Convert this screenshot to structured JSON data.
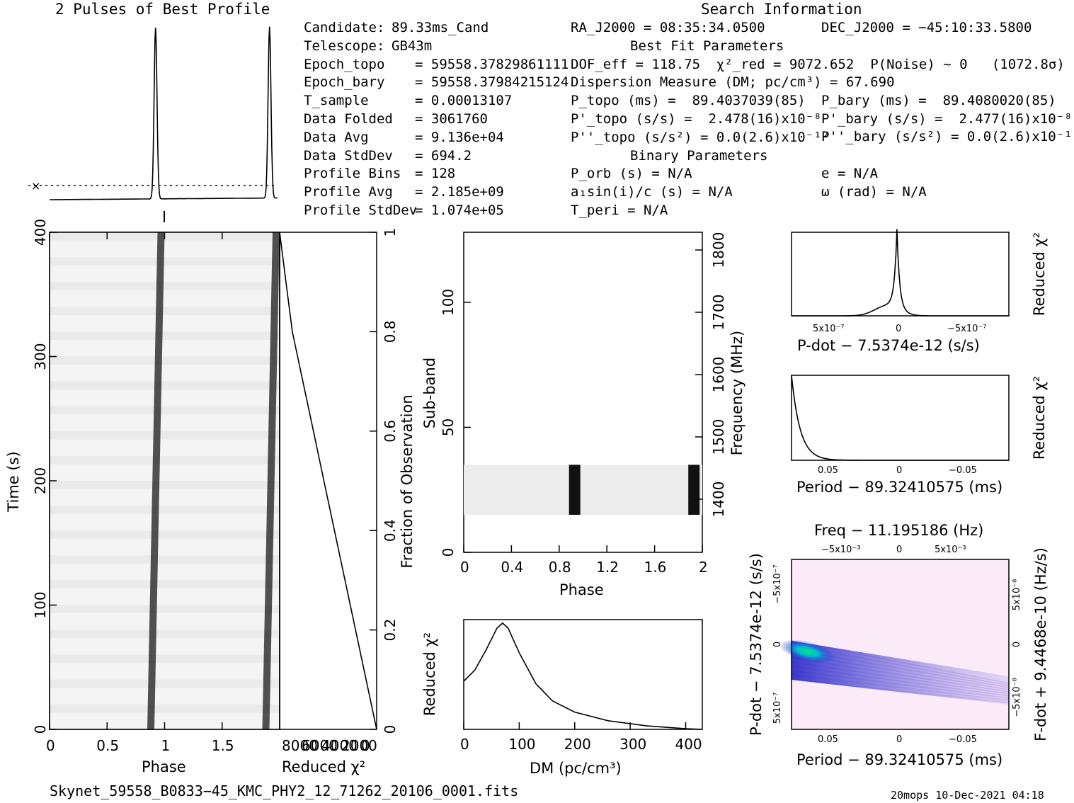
{
  "title_profile": "2 Pulses of Best Profile",
  "title_search": "Search Information",
  "info_left": [
    [
      "Candidate:",
      "89.33ms_Cand"
    ],
    [
      "Telescope:",
      "GB43m"
    ],
    [
      "Epoch_topo",
      "= 59558.37829861111"
    ],
    [
      "Epoch_bary",
      "= 59558.37984215124"
    ],
    [
      "T_sample",
      "= 0.00013107"
    ],
    [
      "Data Folded",
      "= 3061760"
    ],
    [
      "Data Avg",
      "= 9.136e+04"
    ],
    [
      "Data StdDev",
      "= 694.2"
    ],
    [
      "Profile Bins",
      "= 128"
    ],
    [
      "Profile Avg",
      "= 2.185e+09"
    ],
    [
      "Profile StdDev",
      "= 1.074e+05"
    ]
  ],
  "info_mid": [
    "RA_J2000 = 08:35:34.0500",
    "Best Fit Parameters",
    "DOF_eff = 118.75  χ²_red = 9072.652  P(Noise) ~ 0   (1072.8σ)",
    "Dispersion Measure (DM; pc/cm³) = 67.690",
    "P_topo (ms) =  89.4037039(85)",
    "P'_topo (s/s) =  2.478(16)x10⁻⁸",
    "P''_topo (s/s²) = 0.0(2.6)x10⁻¹²",
    "Binary Parameters",
    "P_orb (s) = N/A",
    "a₁sin(i)/c (s) = N/A",
    "T_peri = N/A"
  ],
  "info_right": [
    "DEC_J2000 = −45:10:33.5800",
    "P_bary (ms) =  89.4080020(85)",
    "P'_bary (s/s) =  2.477(16)x10⁻⁸",
    "P''_bary (s/s²) = 0.0(2.6)x10⁻¹²",
    "e = N/A",
    "ω (rad) = N/A"
  ],
  "footer_file": "Skynet_59558_B0833−45_KMC_PHY2_12_71262_20106_0001.fits",
  "footer_stamp": "20mops 10-Dec-2021 04:18",
  "colors": {
    "ink": "#000000",
    "cmap_low": "#ffffff",
    "cmap_mid": "#2424c8",
    "cmap_high": "#00e673"
  },
  "chart_data": [
    {
      "type": "line",
      "name": "profile",
      "title": "2 Pulses of Best Profile",
      "x": [
        0.0,
        0.2,
        0.5,
        0.8,
        0.86,
        0.9,
        0.93,
        0.96,
        1.0,
        1.3,
        1.7,
        1.86,
        1.9,
        1.93,
        1.96,
        2.0
      ],
      "y": [
        0.0,
        0.003,
        0.006,
        0.01,
        0.05,
        0.6,
        1.0,
        0.6,
        0.02,
        0.012,
        0.014,
        0.05,
        0.6,
        1.0,
        0.6,
        0.02
      ],
      "xlim": [
        0,
        2
      ]
    },
    {
      "type": "heatmap",
      "name": "time-phase",
      "xlabel": "Phase",
      "ylabel": "Time (s)",
      "xticks": [
        "0",
        "0.5",
        "1",
        "1.5"
      ],
      "yticks": [
        "0",
        "100",
        "200",
        "300",
        "400"
      ],
      "xlim": [
        0,
        2
      ],
      "ylim": [
        0,
        400
      ],
      "pulse_phase_bottom": 0.88,
      "pulse_phase_top": 0.92
    },
    {
      "type": "line",
      "name": "reduced-chi2-vs-time",
      "xlabel": "Reduced χ²",
      "y2label": "Fraction of Observation",
      "x2ticks": [
        "8000",
        "6000",
        "4000",
        "2000",
        "0"
      ],
      "yticks2": [
        "0",
        "0.2",
        "0.4",
        "0.6",
        "0.8",
        "1"
      ],
      "fraction": [
        0,
        0.1,
        0.2,
        0.3,
        0.4,
        0.5,
        0.6,
        0.7,
        0.8,
        0.9,
        1.0
      ],
      "chi2": [
        0,
        1000,
        2000,
        3000,
        4000,
        5000,
        6000,
        7000,
        8000,
        8600,
        9200
      ]
    },
    {
      "type": "heatmap",
      "name": "subband-phase",
      "xlabel": "Phase",
      "ylabel": "Sub-band",
      "y2label": "Frequency (MHz)",
      "xticks": [
        "0",
        "0.4",
        "0.8",
        "1.2",
        "1.6",
        "2"
      ],
      "yticks": [
        "0",
        "50",
        "100"
      ],
      "y2ticks": [
        "1400",
        "1500",
        "1600",
        "1700",
        "1800"
      ],
      "subband_range": [
        15,
        35
      ]
    },
    {
      "type": "line",
      "name": "dm-chi2",
      "xlabel": "DM (pc/cm³)",
      "ylabel": "Reduced χ²",
      "xticks": [
        "0",
        "100",
        "200",
        "300",
        "400"
      ],
      "x": [
        0,
        20,
        40,
        60,
        70,
        80,
        100,
        130,
        160,
        200,
        260,
        330,
        400,
        430
      ],
      "y": [
        3900,
        4800,
        6400,
        8200,
        8600,
        8200,
        6200,
        3700,
        2300,
        1400,
        700,
        280,
        50,
        0
      ],
      "xlim": [
        0,
        430
      ]
    },
    {
      "type": "line",
      "name": "pdot-chi2",
      "xlabel": "P-dot − 7.5374e-12 (s/s)",
      "ylabel": "Reduced χ²",
      "xticks": [
        "5x10⁻⁷",
        "0",
        "−5x10⁻⁷"
      ]
    },
    {
      "type": "line",
      "name": "period-chi2",
      "xlabel": "Period − 89.32410575 (ms)",
      "ylabel": "Reduced χ²",
      "xticks": [
        "0.05",
        "0",
        "−0.05"
      ]
    },
    {
      "type": "heatmap",
      "name": "period-pdot",
      "title": "Freq − 11.195186 (Hz)",
      "xlabel": "Period − 89.32410575 (ms)",
      "ylabel": "P-dot − 7.5374e-12 (s/s)",
      "y2label": "F-dot + 9.4468e-10 (Hz/s)",
      "xticks": [
        "0.05",
        "0",
        "−0.05"
      ],
      "x2ticks": [
        "−5x10⁻³",
        "0",
        "5x10⁻³"
      ],
      "yticks": [
        "5x10⁻⁷",
        "0",
        "−5x10⁻⁷"
      ],
      "y2ticks": [
        "−5x10⁻⁸",
        "0",
        "5x10⁻⁸"
      ]
    }
  ]
}
